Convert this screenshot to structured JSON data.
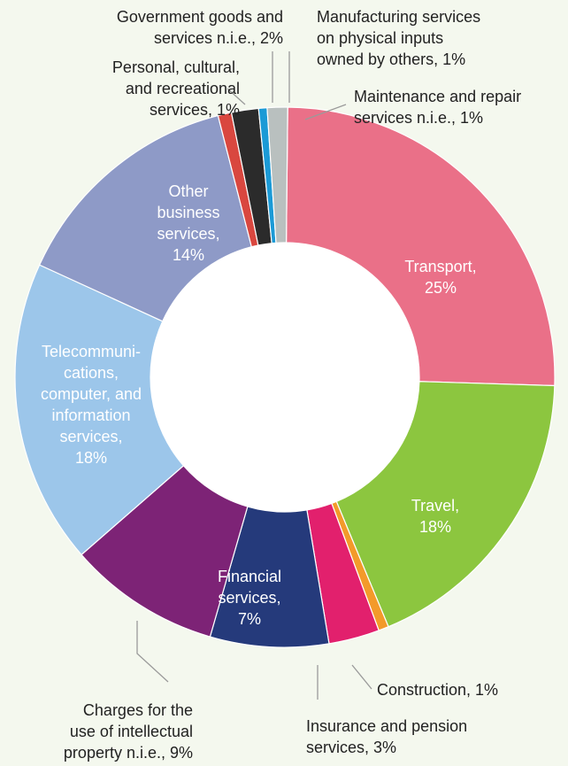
{
  "chart_data": {
    "type": "pie",
    "title": "",
    "donut": true,
    "slices": [
      {
        "name": "Transport",
        "label": [
          "Transport,",
          "25%"
        ],
        "value": 25,
        "color": "#ea7088",
        "label_inside": true
      },
      {
        "name": "Travel",
        "label": [
          "Travel,",
          "18%"
        ],
        "value": 18,
        "color": "#8cc63f",
        "label_inside": true
      },
      {
        "name": "Construction",
        "label": [
          "Construction, 1%"
        ],
        "value": 0.6,
        "color": "#f39a2a",
        "label_inside": false
      },
      {
        "name": "Insurance and pension services",
        "label": [
          "Insurance and pension",
          "services, 3%"
        ],
        "value": 3,
        "color": "#e2206d",
        "label_inside": false
      },
      {
        "name": "Financial services",
        "label": [
          "Financial",
          "services,",
          "7%"
        ],
        "value": 7,
        "color": "#253a7b",
        "label_inside": true
      },
      {
        "name": "Charges for the use of intellectual property n.i.e.",
        "label": [
          "Charges for the",
          "use of intellectual",
          "property n.i.e., 9%"
        ],
        "value": 9,
        "color": "#7d2376",
        "label_inside": false
      },
      {
        "name": "Telecommunications, computer, and information services",
        "label": [
          "Telecommuni-",
          "cations,",
          "computer, and",
          "information",
          "services,",
          "18%"
        ],
        "value": 18,
        "color": "#9cc6ea",
        "label_inside": true
      },
      {
        "name": "Other business services",
        "label": [
          "Other",
          "business",
          "services,",
          "14%"
        ],
        "value": 14,
        "color": "#8e9ac7",
        "label_inside": true
      },
      {
        "name": "Personal, cultural, and recreational services",
        "label": [
          "Personal, cultural,",
          "and recreational",
          "services, 1%"
        ],
        "value": 0.8,
        "color": "#d9473f",
        "label_inside": false
      },
      {
        "name": "Government goods and services n.i.e.",
        "label": [
          "Government goods and",
          "services n.i.e., 2%"
        ],
        "value": 1.6,
        "color": "#2b2b2b",
        "label_inside": false
      },
      {
        "name": "Manufacturing services on physical inputs owned by others",
        "label": [
          "Manufacturing services",
          "on physical inputs",
          "owned by others, 1%"
        ],
        "value": 0.5,
        "color": "#1b9ad6",
        "label_inside": false
      },
      {
        "name": "Maintenance and repair services n.i.e.",
        "label": [
          "Maintenance and repair",
          "services n.i.e., 1%"
        ],
        "value": 1.2,
        "color": "#b9c0bf",
        "label_inside": false
      }
    ]
  }
}
